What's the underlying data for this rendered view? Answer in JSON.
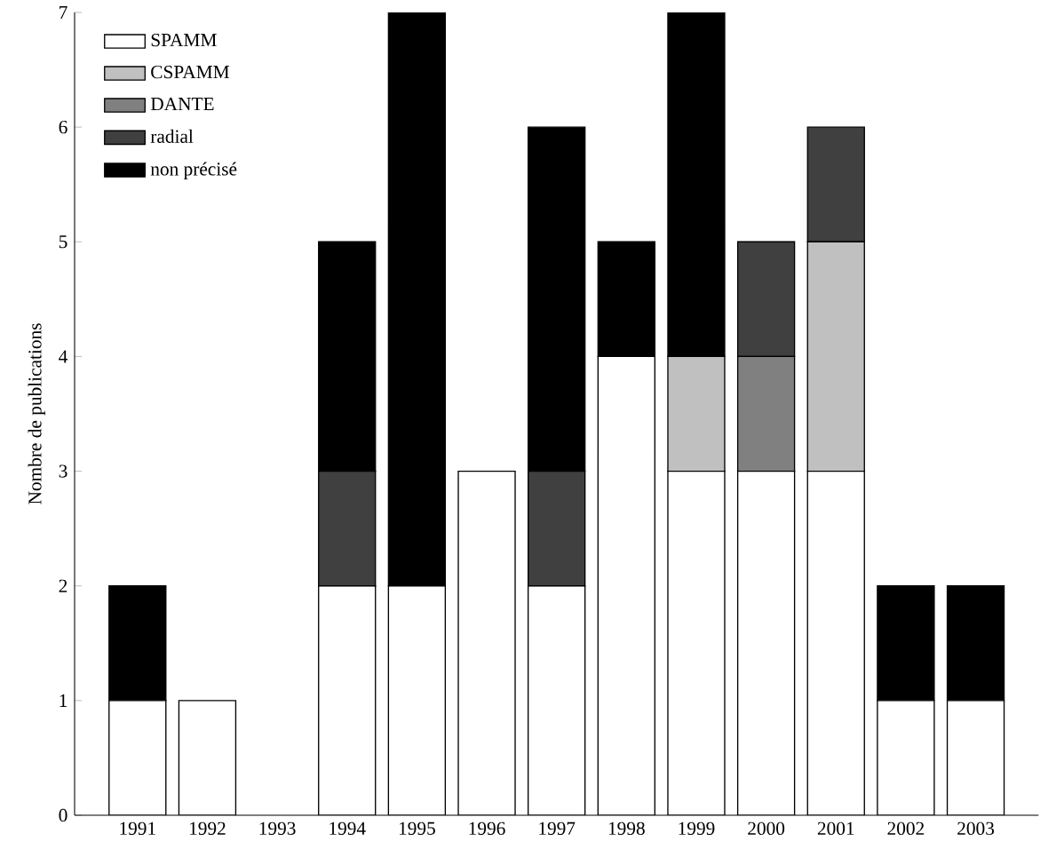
{
  "chart_data": {
    "type": "bar",
    "stacked": true,
    "ylabel": "Nombre de publications",
    "categories": [
      "1991",
      "1992",
      "1993",
      "1994",
      "1995",
      "1996",
      "1997",
      "1998",
      "1999",
      "2000",
      "2001",
      "2002",
      "2003"
    ],
    "ylim": [
      0,
      7
    ],
    "yticks": [
      0,
      1,
      2,
      3,
      4,
      5,
      6,
      7
    ],
    "legend": "top left",
    "grid": false,
    "series": [
      {
        "name": "SPAMM",
        "color": "#ffffff",
        "values": [
          1,
          1,
          0,
          2,
          2,
          3,
          2,
          4,
          3,
          3,
          3,
          1,
          1
        ]
      },
      {
        "name": "CSPAMM",
        "color": "#c0c0c0",
        "values": [
          0,
          0,
          0,
          0,
          0,
          0,
          0,
          0,
          1,
          0,
          2,
          0,
          0
        ]
      },
      {
        "name": "DANTE",
        "color": "#808080",
        "values": [
          0,
          0,
          0,
          0,
          0,
          0,
          0,
          0,
          0,
          1,
          0,
          0,
          0
        ]
      },
      {
        "name": "radial",
        "color": "#404040",
        "values": [
          0,
          0,
          0,
          1,
          0,
          0,
          1,
          0,
          0,
          1,
          1,
          0,
          0
        ]
      },
      {
        "name": "non précisé",
        "color": "#000000",
        "values": [
          1,
          0,
          0,
          2,
          5,
          0,
          3,
          1,
          3,
          0,
          0,
          1,
          1
        ]
      }
    ]
  }
}
